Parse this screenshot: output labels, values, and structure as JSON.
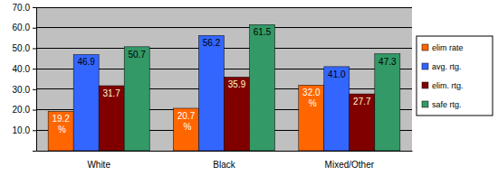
{
  "chart_data": {
    "type": "bar",
    "categories": [
      "White",
      "Black",
      "Mixed/Other"
    ],
    "series": [
      {
        "name": "elim rate",
        "color": "#ff6600",
        "values": [
          19.2,
          20.7,
          32.0
        ],
        "value_labels": [
          "19.2 %",
          "20.7 %",
          "32.0 %"
        ]
      },
      {
        "name": "avg. rtg.",
        "color": "#3366ff",
        "values": [
          46.9,
          56.2,
          41.0
        ],
        "value_labels": [
          "46.9",
          "56.2",
          "41.0"
        ]
      },
      {
        "name": "elim. rtg.",
        "color": "#800000",
        "values": [
          31.7,
          35.9,
          27.7
        ],
        "value_labels": [
          "31.7",
          "35.9",
          "27.7"
        ]
      },
      {
        "name": "safe rtg.",
        "color": "#339966",
        "values": [
          50.7,
          61.5,
          47.3
        ],
        "value_labels": [
          "50.7",
          "61.5",
          "47.3"
        ]
      }
    ],
    "ylim": [
      0,
      70
    ],
    "yticks": [
      {
        "value": 10,
        "label": "10.0"
      },
      {
        "value": 20,
        "label": "20.0"
      },
      {
        "value": 30,
        "label": "30.0"
      },
      {
        "value": 40,
        "label": "40.0"
      },
      {
        "value": 50,
        "label": "50.0"
      },
      {
        "value": 60,
        "label": "60.0"
      },
      {
        "value": 70,
        "label": "70.0"
      }
    ],
    "grid": true,
    "legend": "right",
    "data_labels": true
  }
}
